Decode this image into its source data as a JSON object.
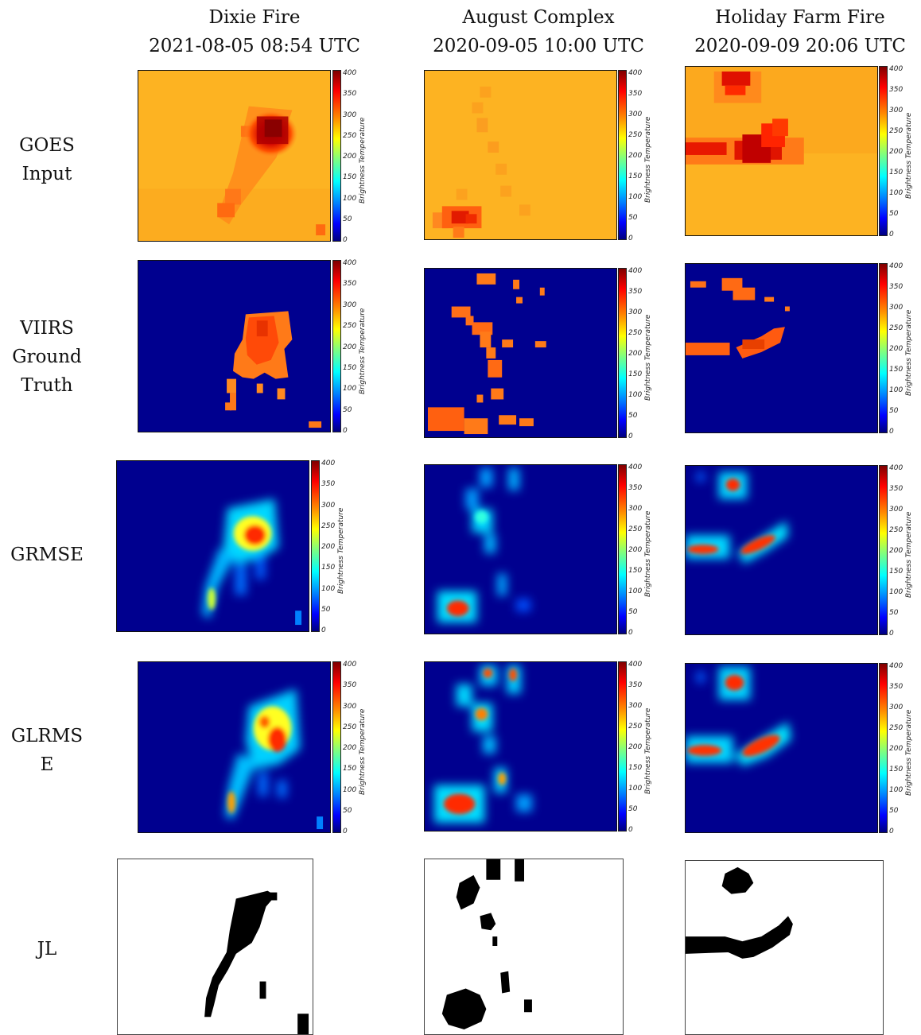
{
  "columns": [
    {
      "line1": "Dixie Fire",
      "line2": "2021-08-05 08:54 UTC"
    },
    {
      "line1": "August Complex",
      "line2": "2020-09-05 10:00 UTC"
    },
    {
      "line1": "Holiday Farm Fire",
      "line2": "2020-09-09 20:06 UTC"
    }
  ],
  "rows": [
    {
      "lines": [
        "GOES",
        "Input"
      ]
    },
    {
      "lines": [
        "VIIRS",
        "Ground",
        "Truth"
      ]
    },
    {
      "lines": [
        "GRMSE"
      ]
    },
    {
      "lines": [
        "GLRMS",
        "E"
      ]
    },
    {
      "lines": [
        "JL"
      ]
    }
  ],
  "colorbar": {
    "label": "Brightness Temperature",
    "ticks": [
      "400",
      "350",
      "300",
      "250",
      "200",
      "150",
      "100",
      "50",
      "0"
    ],
    "colormap": "jet",
    "range": [
      0,
      400
    ]
  },
  "colors": {
    "goes_background": "#fdb322",
    "low_background": "#00008f",
    "mask_fill": "#000000"
  }
}
